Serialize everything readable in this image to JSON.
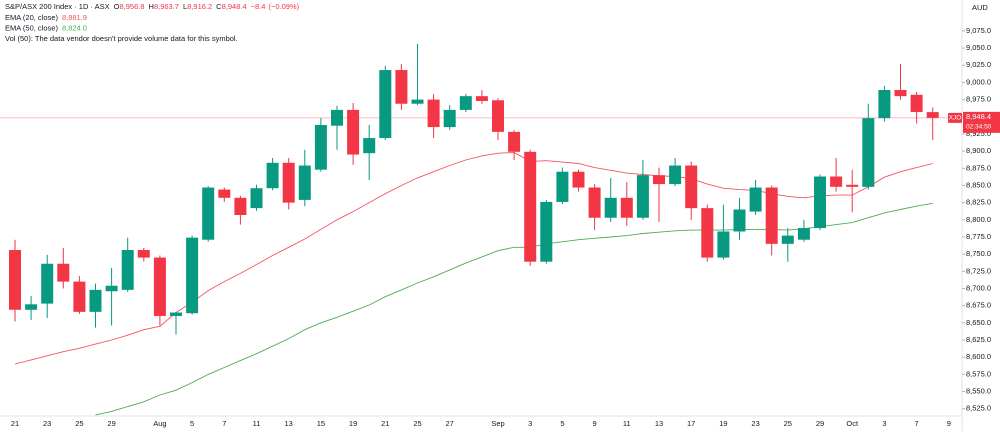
{
  "chart_data": {
    "type": "candlestick",
    "title": "S&P/ASX 200 Index · 1D · ASX",
    "currency": "AUD",
    "ohlc_legend": [
      {
        "key": "O",
        "value": 8956.8,
        "label": "8,956.8"
      },
      {
        "key": "H",
        "value": 8963.7,
        "label": "8,963.7"
      },
      {
        "key": "L",
        "value": 8916.2,
        "label": "8,916.2"
      },
      {
        "key": "C",
        "value": 8948.4,
        "label": "8,948.4"
      }
    ],
    "change": {
      "value": -8.4,
      "label": "−8.4"
    },
    "change_pct": {
      "value": -0.09,
      "label": "(−0.09%)"
    },
    "volume_note": "Vol (50): The data vendor doesn't provide volume data for this symbol.",
    "last_price": {
      "symbol": "XJO",
      "value": 8948.4,
      "label": "8,948.4",
      "countdown": "02:34:50",
      "color": "#f23645"
    },
    "up_color": "#089981",
    "down_color": "#f23645",
    "categories": [
      "21",
      null,
      "23",
      null,
      "25",
      null,
      "29",
      null,
      null,
      "Aug",
      null,
      "5",
      null,
      "7",
      null,
      "11",
      null,
      "13",
      null,
      "15",
      null,
      "19",
      null,
      "21",
      null,
      "25",
      null,
      "27",
      null,
      null,
      "Sep",
      null,
      "3",
      null,
      "5",
      null,
      "9",
      null,
      "11",
      null,
      "13",
      null,
      "17",
      null,
      "19",
      null,
      "23",
      null,
      "25",
      null,
      "29",
      null,
      "Oct",
      null,
      "3",
      null,
      "7",
      null,
      "9"
    ],
    "open": [
      8756,
      8669,
      8678,
      8736,
      8710,
      8666,
      8696,
      8698,
      8756,
      8745,
      8660,
      8664,
      8771,
      8844,
      8832,
      8817,
      8846,
      8883,
      8829,
      8873,
      8937,
      8960,
      8897,
      8919,
      9018,
      8969,
      8975,
      8935,
      8960,
      8980,
      8974,
      8928,
      8899,
      8739,
      8826,
      8870,
      8847,
      8803,
      8832,
      8803,
      8865,
      8852,
      8879,
      8817,
      8745,
      8783,
      8812,
      8847,
      8765,
      8771,
      8788,
      8863,
      8851,
      8848,
      8948,
      8989,
      8982,
      8956.8,
      null
    ],
    "high": [
      8771,
      8689,
      8749,
      8759,
      8718,
      8707,
      8730,
      8774,
      8759,
      8748,
      8666,
      8777,
      8849,
      8847,
      8835,
      8851,
      8890,
      8890,
      8902,
      8948,
      8966,
      8970,
      8938,
      9024,
      9027,
      9056,
      8983,
      8967,
      8983,
      8989,
      8977,
      8931,
      8902,
      8829,
      8876,
      8873,
      8852,
      8861,
      8855,
      8887,
      8876,
      8890,
      8885,
      8822,
      8822,
      8832,
      8858,
      8850,
      8788,
      8800,
      8866,
      8890,
      8873,
      8969,
      8995,
      9027,
      8986,
      8963.7,
      null
    ],
    "low": [
      8652,
      8654,
      8657,
      8700,
      8663,
      8643,
      8646,
      8695,
      8739,
      8646,
      8633,
      8662,
      8768,
      8826,
      8793,
      8813,
      8843,
      8815,
      8820,
      8870,
      8902,
      8880,
      8858,
      8916,
      8960,
      8967,
      8919,
      8931,
      8957,
      8969,
      8916,
      8887,
      8733,
      8736,
      8823,
      8841,
      8785,
      8797,
      8791,
      8800,
      8797,
      8849,
      8800,
      8739,
      8742,
      8771,
      8807,
      8748,
      8739,
      8768,
      8785,
      8841,
      8811,
      8844,
      8943,
      8975,
      8940,
      8916.2,
      null
    ],
    "close": [
      8669,
      8677,
      8736,
      8710,
      8666,
      8698,
      8704,
      8756,
      8745,
      8660,
      8665,
      8774,
      8847,
      8832,
      8807,
      8846,
      8883,
      8825,
      8879,
      8938,
      8960,
      8895,
      8919,
      9018,
      8969,
      8975,
      8935,
      8960,
      8980,
      8973,
      8928,
      8899,
      8739,
      8826,
      8870,
      8847,
      8803,
      8832,
      8803,
      8865,
      8852,
      8879,
      8817,
      8745,
      8783,
      8815,
      8847,
      8765,
      8777,
      8788,
      8863,
      8848,
      8848,
      8948,
      8989,
      8980,
      8957,
      8948.4,
      null
    ],
    "series": [
      {
        "name": "EMA (20, close)",
        "color": "#f7525f",
        "legend_value": {
          "value": 8881.9,
          "label": "8,881.9"
        },
        "values": [
          8590,
          8596,
          8602,
          8608,
          8613,
          8619,
          8625,
          8632,
          8640,
          8645,
          8665,
          8680,
          8697,
          8710,
          8722,
          8735,
          8748,
          8760,
          8772,
          8786,
          8800,
          8812,
          8825,
          8838,
          8850,
          8861,
          8870,
          8879,
          8887,
          8893,
          8897,
          8898,
          8885,
          8886,
          8884,
          8882,
          8876,
          8872,
          8868,
          8866,
          8864,
          8863,
          8860,
          8852,
          8846,
          8844,
          8843,
          8838,
          8834,
          8832,
          8835,
          8836,
          8836,
          8848,
          8862,
          8870,
          8876,
          8881.9,
          null
        ]
      },
      {
        "name": "EMA (50, close)",
        "color": "#4caf50",
        "legend_value": {
          "value": 8824.0,
          "label": "8,824.0"
        },
        "values": [
          null,
          null,
          null,
          null,
          null,
          8516,
          8521,
          8528,
          8535,
          8545,
          8552,
          8563,
          8575,
          8585,
          8595,
          8605,
          8616,
          8627,
          8640,
          8650,
          8658,
          8667,
          8676,
          8688,
          8698,
          8708,
          8717,
          8727,
          8737,
          8746,
          8755,
          8760,
          8760,
          8765,
          8768,
          8771,
          8773,
          8775,
          8777,
          8780,
          8782,
          8784,
          8785,
          8785,
          8785,
          8786,
          8786,
          8786,
          8785,
          8787,
          8790,
          8793,
          8796,
          8803,
          8810,
          8815,
          8820,
          8824.0,
          null
        ]
      }
    ],
    "ylim": [
      8510,
      9120
    ],
    "yticks": [
      {
        "value": 8525,
        "label": "8,525.0"
      },
      {
        "value": 8550,
        "label": "8,550.0"
      },
      {
        "value": 8575,
        "label": "8,575.0"
      },
      {
        "value": 8600,
        "label": "8,600.0"
      },
      {
        "value": 8625,
        "label": "8,625.0"
      },
      {
        "value": 8650,
        "label": "8,650.0"
      },
      {
        "value": 8675,
        "label": "8,675.0"
      },
      {
        "value": 8700,
        "label": "8,700.0"
      },
      {
        "value": 8725,
        "label": "8,725.0"
      },
      {
        "value": 8750,
        "label": "8,750.0"
      },
      {
        "value": 8775,
        "label": "8,775.0"
      },
      {
        "value": 8800,
        "label": "8,800.0"
      },
      {
        "value": 8825,
        "label": "8,825.0"
      },
      {
        "value": 8850,
        "label": "8,850.0"
      },
      {
        "value": 8875,
        "label": "8,875.0"
      },
      {
        "value": 8900,
        "label": "8,900.0"
      },
      {
        "value": 8925,
        "label": "8,925.0"
      },
      {
        "value": 8950,
        "label": "8,950.0"
      },
      {
        "value": 8975,
        "label": "8,975.0"
      },
      {
        "value": 9000,
        "label": "9,000.0"
      },
      {
        "value": 9025,
        "label": "9,025.0"
      },
      {
        "value": 9050,
        "label": "9,050.0"
      },
      {
        "value": 9075,
        "label": "9,075.0"
      }
    ],
    "grid": false
  }
}
